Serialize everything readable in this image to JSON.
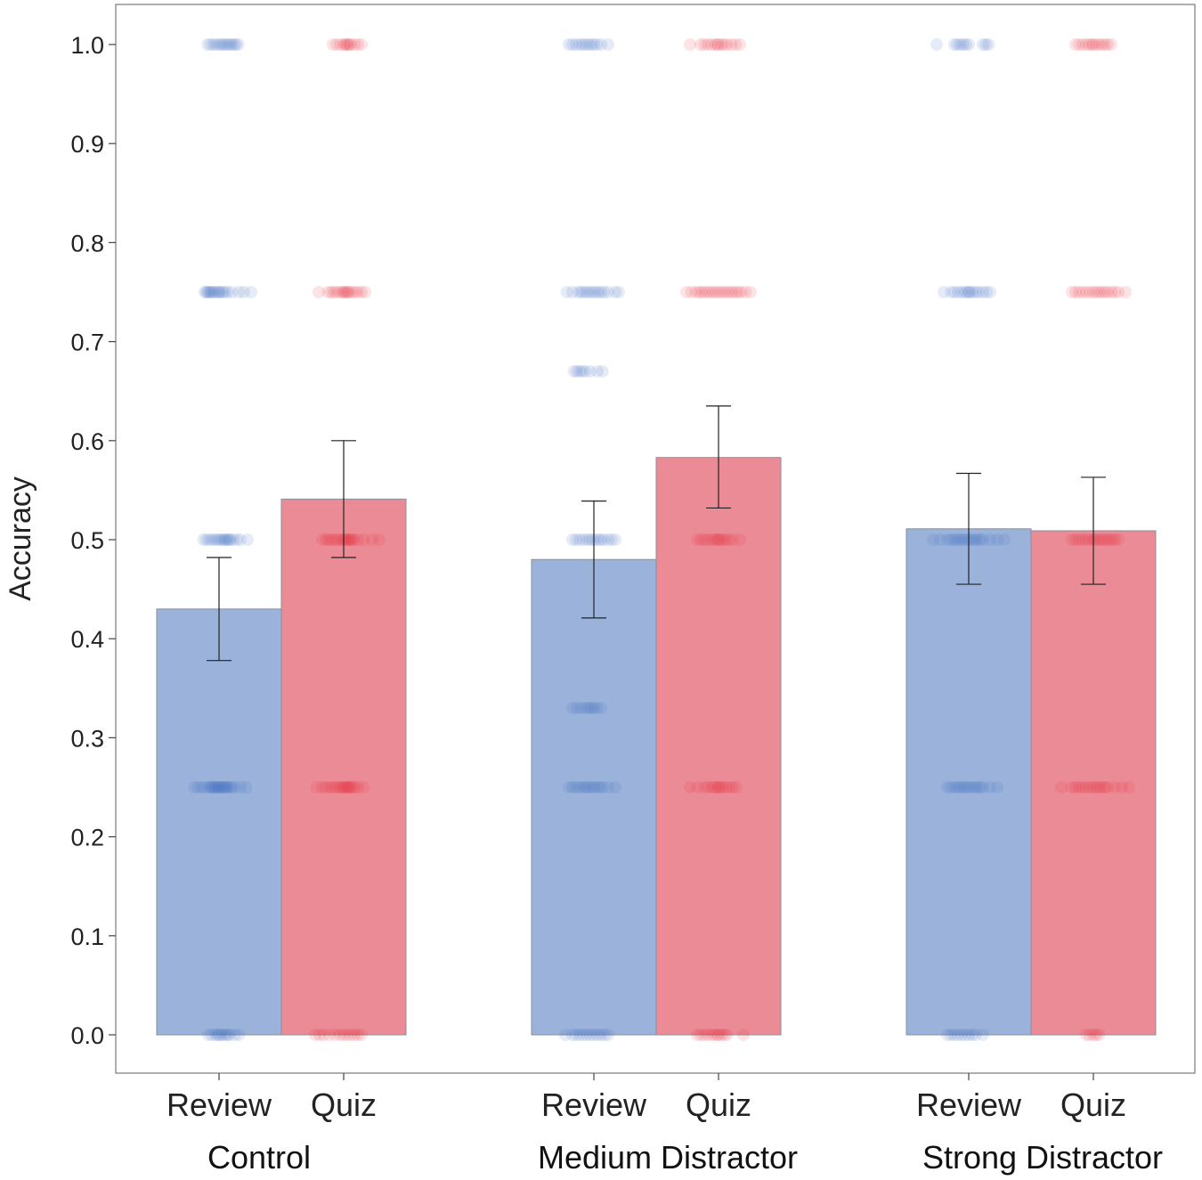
{
  "chart_data": {
    "type": "bar",
    "title": "",
    "xlabel": "",
    "ylabel": "Accuracy",
    "ylim": [
      0,
      1.0
    ],
    "yticks": [
      "0.0",
      "0.1",
      "0.2",
      "0.3",
      "0.4",
      "0.5",
      "0.6",
      "0.7",
      "0.8",
      "0.9",
      "1.0"
    ],
    "grid": false,
    "colors": {
      "Review": "#9bb3da",
      "Quiz": "#eb8b96",
      "Review_dot": "#3a70c4",
      "Quiz_dot": "#e8303f",
      "error_bar": "#222222"
    },
    "groups": [
      {
        "name": "Control",
        "bars": [
          {
            "condition": "Review",
            "value": 0.43,
            "error_low": 0.378,
            "error_high": 0.482,
            "points": [
              {
                "y": 1.0,
                "xs": [
                  -0.16,
                  -0.12,
                  -0.08,
                  -0.04,
                  0.0,
                  0.03,
                  0.06,
                  0.09,
                  0.12,
                  0.15,
                  0.18,
                  0.21,
                  0.24,
                  0.27
                ]
              },
              {
                "y": 0.75,
                "xs": [
                  -0.2,
                  -0.18,
                  -0.16,
                  -0.14,
                  -0.12,
                  -0.1,
                  -0.08,
                  -0.05,
                  -0.02,
                  0.0,
                  0.02,
                  0.05,
                  0.08,
                  0.12,
                  0.18,
                  0.28,
                  0.35,
                  0.45
                ]
              },
              {
                "y": 0.5,
                "xs": [
                  -0.22,
                  -0.18,
                  -0.14,
                  -0.1,
                  -0.06,
                  -0.03,
                  0.0,
                  0.03,
                  0.06,
                  0.08,
                  0.1,
                  0.12,
                  0.14,
                  0.16,
                  0.2,
                  0.25,
                  0.3,
                  0.4
                ]
              },
              {
                "y": 0.25,
                "xs": [
                  -0.35,
                  -0.3,
                  -0.25,
                  -0.2,
                  -0.15,
                  -0.12,
                  -0.1,
                  -0.08,
                  -0.06,
                  -0.04,
                  -0.02,
                  0.0,
                  0.02,
                  0.04,
                  0.06,
                  0.08,
                  0.1,
                  0.12,
                  0.15,
                  0.18,
                  0.22,
                  0.3,
                  0.38
                ]
              },
              {
                "y": 0.0,
                "xs": [
                  -0.15,
                  -0.1,
                  -0.05,
                  -0.02,
                  0.0,
                  0.03,
                  0.06,
                  0.1,
                  0.12,
                  0.15,
                  0.22,
                  0.28
                ]
              }
            ]
          },
          {
            "condition": "Quiz",
            "value": 0.541,
            "error_low": 0.482,
            "error_high": 0.6,
            "points": [
              {
                "y": 1.0,
                "xs": [
                  -0.15,
                  -0.1,
                  -0.05,
                  0.0,
                  0.02,
                  0.04,
                  0.06,
                  0.08,
                  0.1,
                  0.15,
                  0.2,
                  0.25
                ]
              },
              {
                "y": 0.75,
                "xs": [
                  -0.35,
                  -0.22,
                  -0.18,
                  -0.14,
                  -0.1,
                  -0.06,
                  -0.02,
                  0.0,
                  0.02,
                  0.04,
                  0.06,
                  0.08,
                  0.12,
                  0.16,
                  0.2,
                  0.25,
                  0.3
                ]
              },
              {
                "y": 0.5,
                "xs": [
                  -0.3,
                  -0.25,
                  -0.22,
                  -0.18,
                  -0.14,
                  -0.1,
                  -0.06,
                  -0.02,
                  0.0,
                  0.02,
                  0.04,
                  0.06,
                  0.08,
                  0.1,
                  0.12,
                  0.14,
                  0.2,
                  0.28,
                  0.4,
                  0.5
                ]
              },
              {
                "y": 0.25,
                "xs": [
                  -0.38,
                  -0.3,
                  -0.25,
                  -0.2,
                  -0.16,
                  -0.12,
                  -0.08,
                  -0.05,
                  -0.02,
                  0.0,
                  0.02,
                  0.04,
                  0.06,
                  0.08,
                  0.1,
                  0.12,
                  0.16,
                  0.2,
                  0.28
                ]
              },
              {
                "y": 0.0,
                "xs": [
                  -0.4,
                  -0.34,
                  -0.28,
                  -0.2,
                  -0.12,
                  -0.05,
                  0.0,
                  0.05,
                  0.1,
                  0.15,
                  0.2,
                  0.25
                ]
              }
            ]
          }
        ]
      },
      {
        "name": "Medium Distractor",
        "bars": [
          {
            "condition": "Review",
            "value": 0.48,
            "error_low": 0.421,
            "error_high": 0.539,
            "points": [
              {
                "y": 1.0,
                "xs": [
                  -0.35,
                  -0.3,
                  -0.25,
                  -0.2,
                  -0.16,
                  -0.12,
                  -0.08,
                  -0.04,
                  0.0,
                  0.04,
                  0.1,
                  0.2
                ]
              },
              {
                "y": 0.75,
                "xs": [
                  -0.38,
                  -0.3,
                  -0.22,
                  -0.18,
                  -0.14,
                  -0.1,
                  -0.06,
                  -0.02,
                  0.02,
                  0.06,
                  0.1,
                  0.14,
                  0.2,
                  0.3,
                  0.35
                ]
              },
              {
                "y": 0.67,
                "xs": [
                  -0.28,
                  -0.24,
                  -0.2,
                  -0.16,
                  -0.12,
                  -0.05,
                  0.05,
                  0.12
                ]
              },
              {
                "y": 0.5,
                "xs": [
                  -0.3,
                  -0.25,
                  -0.2,
                  -0.15,
                  -0.1,
                  -0.06,
                  -0.02,
                  0.02,
                  0.06,
                  0.1,
                  0.14,
                  0.2,
                  0.25,
                  0.3
                ]
              },
              {
                "y": 0.33,
                "xs": [
                  -0.3,
                  -0.24,
                  -0.18,
                  -0.12,
                  -0.08,
                  -0.04,
                  0.0,
                  0.04,
                  0.1
                ]
              },
              {
                "y": 0.25,
                "xs": [
                  -0.35,
                  -0.3,
                  -0.25,
                  -0.2,
                  -0.15,
                  -0.12,
                  -0.08,
                  -0.04,
                  0.0,
                  0.04,
                  0.08,
                  0.12,
                  0.2,
                  0.3
                ]
              },
              {
                "y": 0.0,
                "xs": [
                  -0.4,
                  -0.3,
                  -0.25,
                  -0.2,
                  -0.15,
                  -0.1,
                  -0.05,
                  0.0,
                  0.05,
                  0.1,
                  0.15,
                  0.2
                ]
              }
            ]
          },
          {
            "condition": "Quiz",
            "value": 0.583,
            "error_low": 0.532,
            "error_high": 0.635,
            "points": [
              {
                "y": 1.0,
                "xs": [
                  -0.4,
                  -0.25,
                  -0.2,
                  -0.15,
                  -0.1,
                  -0.05,
                  -0.02,
                  0.0,
                  0.04,
                  0.08,
                  0.12,
                  0.18,
                  0.24,
                  0.3
                ]
              },
              {
                "y": 0.75,
                "xs": [
                  -0.45,
                  -0.38,
                  -0.32,
                  -0.28,
                  -0.24,
                  -0.2,
                  -0.16,
                  -0.12,
                  -0.08,
                  -0.04,
                  0.0,
                  0.04,
                  0.08,
                  0.12,
                  0.16,
                  0.2,
                  0.24,
                  0.28,
                  0.32,
                  0.38,
                  0.45
                ]
              },
              {
                "y": 0.5,
                "xs": [
                  -0.3,
                  -0.25,
                  -0.2,
                  -0.15,
                  -0.1,
                  -0.06,
                  -0.02,
                  0.0,
                  0.02,
                  0.06,
                  0.1,
                  0.14,
                  0.2,
                  0.3
                ]
              },
              {
                "y": 0.25,
                "xs": [
                  -0.4,
                  -0.3,
                  -0.2,
                  -0.15,
                  -0.1,
                  -0.06,
                  -0.02,
                  0.0,
                  0.02,
                  0.06,
                  0.1,
                  0.15,
                  0.2,
                  0.25
                ]
              },
              {
                "y": 0.0,
                "xs": [
                  -0.3,
                  -0.25,
                  -0.2,
                  -0.15,
                  -0.1,
                  -0.06,
                  -0.02,
                  0.0,
                  0.04,
                  0.08,
                  0.12,
                  0.35
                ]
              }
            ]
          }
        ]
      },
      {
        "name": "Strong Distractor",
        "bars": [
          {
            "condition": "Review",
            "value": 0.511,
            "error_low": 0.455,
            "error_high": 0.567,
            "points": [
              {
                "y": 1.0,
                "xs": [
                  -0.45,
                  -0.2,
                  -0.16,
                  -0.12,
                  -0.08,
                  -0.04,
                  0.0,
                  0.2,
                  0.24,
                  0.28
                ]
              },
              {
                "y": 0.75,
                "xs": [
                  -0.35,
                  -0.25,
                  -0.2,
                  -0.15,
                  -0.1,
                  -0.06,
                  -0.02,
                  0.0,
                  0.02,
                  0.06,
                  0.1,
                  0.14,
                  0.2,
                  0.25,
                  0.3
                ]
              },
              {
                "y": 0.5,
                "xs": [
                  -0.5,
                  -0.4,
                  -0.3,
                  -0.25,
                  -0.2,
                  -0.16,
                  -0.12,
                  -0.08,
                  -0.04,
                  0.0,
                  0.04,
                  0.08,
                  0.12,
                  0.16,
                  0.2,
                  0.3,
                  0.4,
                  0.5
                ]
              },
              {
                "y": 0.25,
                "xs": [
                  -0.3,
                  -0.25,
                  -0.2,
                  -0.15,
                  -0.12,
                  -0.08,
                  -0.04,
                  0.0,
                  0.04,
                  0.08,
                  0.12,
                  0.16,
                  0.2,
                  0.3,
                  0.4
                ]
              },
              {
                "y": 0.0,
                "xs": [
                  -0.3,
                  -0.25,
                  -0.2,
                  -0.15,
                  -0.1,
                  -0.05,
                  0.0,
                  0.05,
                  0.1,
                  0.2
                ]
              }
            ]
          },
          {
            "condition": "Quiz",
            "value": 0.509,
            "error_low": 0.455,
            "error_high": 0.563,
            "points": [
              {
                "y": 1.0,
                "xs": [
                  -0.25,
                  -0.2,
                  -0.15,
                  -0.1,
                  -0.06,
                  -0.02,
                  0.0,
                  0.04,
                  0.08,
                  0.12,
                  0.16,
                  0.2,
                  0.25
                ]
              },
              {
                "y": 0.75,
                "xs": [
                  -0.3,
                  -0.25,
                  -0.2,
                  -0.15,
                  -0.1,
                  -0.05,
                  0.0,
                  0.04,
                  0.08,
                  0.12,
                  0.16,
                  0.2,
                  0.25,
                  0.3,
                  0.35,
                  0.45
                ]
              },
              {
                "y": 0.5,
                "xs": [
                  -0.3,
                  -0.25,
                  -0.2,
                  -0.15,
                  -0.1,
                  -0.05,
                  0.0,
                  0.02,
                  0.06,
                  0.1,
                  0.14,
                  0.18,
                  0.22,
                  0.26,
                  0.3,
                  0.35
                ]
              },
              {
                "y": 0.25,
                "xs": [
                  -0.45,
                  -0.3,
                  -0.25,
                  -0.2,
                  -0.15,
                  -0.1,
                  -0.05,
                  0.0,
                  0.04,
                  0.08,
                  0.12,
                  0.16,
                  0.2,
                  0.3,
                  0.4,
                  0.5
                ]
              },
              {
                "y": 0.0,
                "xs": [
                  -0.1,
                  -0.05,
                  0.0,
                  0.04,
                  0.08
                ]
              }
            ]
          }
        ]
      }
    ]
  }
}
